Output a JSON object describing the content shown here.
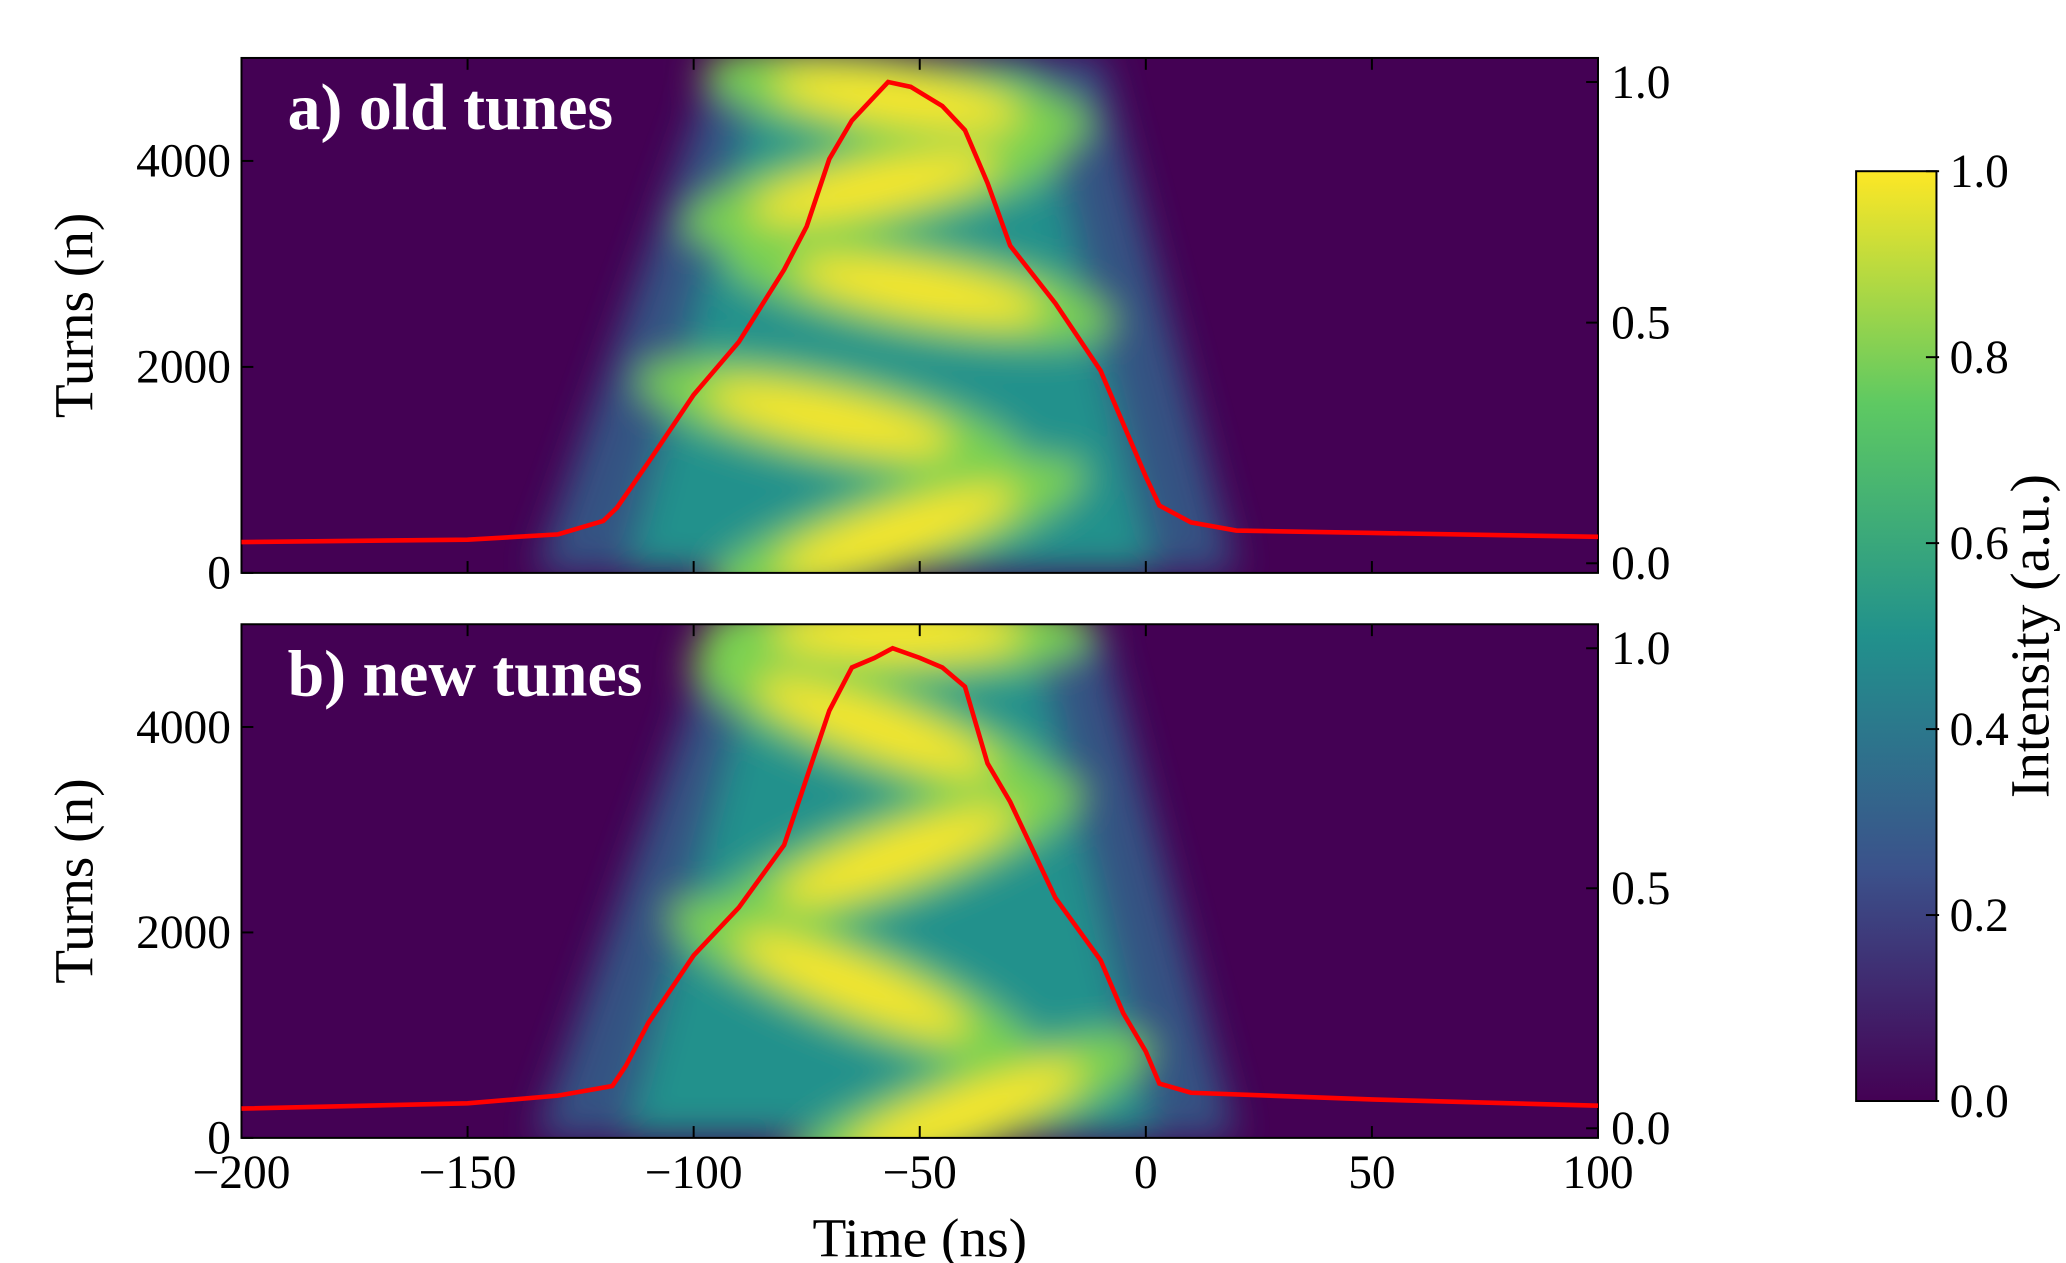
{
  "chart_data": [
    {
      "type": "heatmap-line",
      "title": "a) old tunes",
      "ylabel": "Turns (n)",
      "xlim": [
        -200,
        100
      ],
      "ylim": [
        0,
        5000
      ],
      "yticks": [
        0,
        2000,
        4000
      ],
      "y2lim": [
        -0.02,
        1.05
      ],
      "y2ticks": [
        {
          "value": 0,
          "label": "0.0"
        },
        0.5,
        {
          "value": 1,
          "label": "1.0"
        }
      ],
      "color": "#ff0000",
      "x": [
        -200,
        -150,
        -130,
        -120,
        -117,
        -110,
        -100,
        -90,
        -80,
        -75,
        -70,
        -65,
        -60,
        -57,
        -52,
        -45,
        -40,
        -35,
        -30,
        -20,
        -10,
        -5,
        0,
        3,
        10,
        20,
        50,
        100
      ],
      "values": [
        0.044,
        0.049,
        0.06,
        0.088,
        0.115,
        0.21,
        0.35,
        0.46,
        0.61,
        0.7,
        0.84,
        0.92,
        0.97,
        1.0,
        0.99,
        0.95,
        0.9,
        0.79,
        0.66,
        0.54,
        0.4,
        0.29,
        0.18,
        0.12,
        0.085,
        0.068,
        0.063,
        0.055
      ]
    },
    {
      "type": "heatmap-line",
      "title": "b) new tunes",
      "ylabel": "Turns (n)",
      "xlabel": "Time (ns)",
      "xlim": [
        -200,
        100
      ],
      "xticks": [
        {
          "value": -200,
          "label": "−200"
        },
        {
          "value": -150,
          "label": "−150"
        },
        {
          "value": -100,
          "label": "−100"
        },
        {
          "value": -50,
          "label": "−50"
        },
        0,
        50,
        100
      ],
      "ylim": [
        0,
        5000
      ],
      "yticks": [
        0,
        2000,
        4000
      ],
      "y2lim": [
        -0.02,
        1.05
      ],
      "y2ticks": [
        {
          "value": 0,
          "label": "0.0"
        },
        0.5,
        {
          "value": 1,
          "label": "1.0"
        }
      ],
      "color": "#ff0000",
      "x": [
        -200,
        -150,
        -130,
        -118,
        -115,
        -110,
        -100,
        -90,
        -80,
        -75,
        -70,
        -65,
        -60,
        -56,
        -50,
        -45,
        -40,
        -35,
        -30,
        -20,
        -10,
        -5,
        0,
        3,
        10,
        50,
        100
      ],
      "values": [
        0.041,
        0.052,
        0.068,
        0.088,
        0.13,
        0.22,
        0.36,
        0.46,
        0.59,
        0.73,
        0.87,
        0.96,
        0.98,
        1.0,
        0.98,
        0.96,
        0.92,
        0.76,
        0.68,
        0.48,
        0.35,
        0.24,
        0.16,
        0.093,
        0.074,
        0.06,
        0.047
      ]
    },
    {
      "type": "colorbar",
      "label": "Intensity (a.u.)",
      "lim": [
        0,
        1
      ],
      "ticks": [
        {
          "value": 0,
          "label": "0.0"
        },
        0.2,
        0.4,
        0.6,
        0.8,
        {
          "value": 1,
          "label": "1.0"
        }
      ],
      "colors": [
        "#440154",
        "#3b528b",
        "#21918c",
        "#5ec962",
        "#fde725"
      ]
    }
  ]
}
